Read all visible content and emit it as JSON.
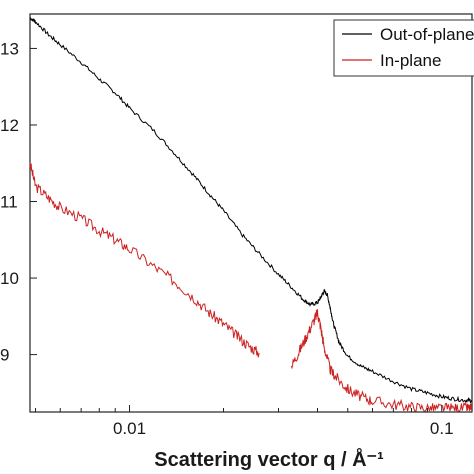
{
  "chart_data": {
    "type": "line",
    "xlabel": "Scattering vector q / Å⁻¹",
    "ylabel": "",
    "xscale": "log",
    "yscale": "log",
    "xlim": [
      0.0048,
      0.125
    ],
    "ylim_exp": [
      8.25,
      13.45
    ],
    "grid": false,
    "legend_position": "top-right",
    "x_ticks": [
      {
        "value": 0.01,
        "label": "0.01"
      },
      {
        "value": 0.1,
        "label": "0.1"
      }
    ],
    "y_ticks": [
      {
        "exp": 13,
        "label": "13"
      },
      {
        "exp": 12,
        "label": "12"
      },
      {
        "exp": 11,
        "label": "11"
      },
      {
        "exp": 10,
        "label": "10"
      },
      {
        "exp": 9,
        "label": "9"
      }
    ],
    "series": [
      {
        "name": "Out-of-plane",
        "color": "#000000",
        "x": [
          0.0048,
          0.005,
          0.0055,
          0.006,
          0.007,
          0.008,
          0.009,
          0.01,
          0.012,
          0.014,
          0.016,
          0.018,
          0.02,
          0.023,
          0.026,
          0.03,
          0.033,
          0.036,
          0.038,
          0.04,
          0.041,
          0.042,
          0.043,
          0.044,
          0.045,
          0.047,
          0.05,
          0.055,
          0.06,
          0.07,
          0.08,
          0.09,
          0.1,
          0.11,
          0.12,
          0.125
        ],
        "y_exp": [
          13.4,
          13.35,
          13.18,
          13.05,
          12.82,
          12.6,
          12.42,
          12.22,
          11.92,
          11.62,
          11.35,
          11.1,
          10.88,
          10.56,
          10.32,
          10.05,
          9.88,
          9.72,
          9.65,
          9.68,
          9.75,
          9.83,
          9.78,
          9.6,
          9.4,
          9.15,
          8.98,
          8.85,
          8.78,
          8.65,
          8.55,
          8.5,
          8.45,
          8.42,
          8.4,
          8.4
        ],
        "noise": 0.025,
        "seed": 7
      },
      {
        "name": "In-plane",
        "color": "#cc2222",
        "x": [
          0.0048,
          0.005,
          0.0055,
          0.006,
          0.007,
          0.008,
          0.009,
          0.01,
          0.012,
          0.014,
          0.016,
          0.018,
          0.02,
          0.022,
          0.024,
          0.026,
          null,
          0.033,
          0.035,
          0.037,
          0.039,
          0.04,
          0.041,
          0.042,
          0.044,
          0.046,
          0.05,
          0.055,
          0.06,
          0.07,
          0.08,
          0.09,
          0.1,
          0.11,
          0.12,
          0.125
        ],
        "y_exp": [
          11.5,
          11.2,
          11.05,
          10.92,
          10.78,
          10.62,
          10.5,
          10.38,
          10.15,
          9.95,
          9.75,
          9.55,
          9.4,
          9.25,
          9.12,
          9.02,
          null,
          8.85,
          9.05,
          9.25,
          9.45,
          9.55,
          9.35,
          9.1,
          8.8,
          8.7,
          8.55,
          8.45,
          8.4,
          8.35,
          8.32,
          8.3,
          8.3,
          8.3,
          8.3,
          8.3
        ],
        "noise": 0.07,
        "seed": 3
      }
    ]
  }
}
